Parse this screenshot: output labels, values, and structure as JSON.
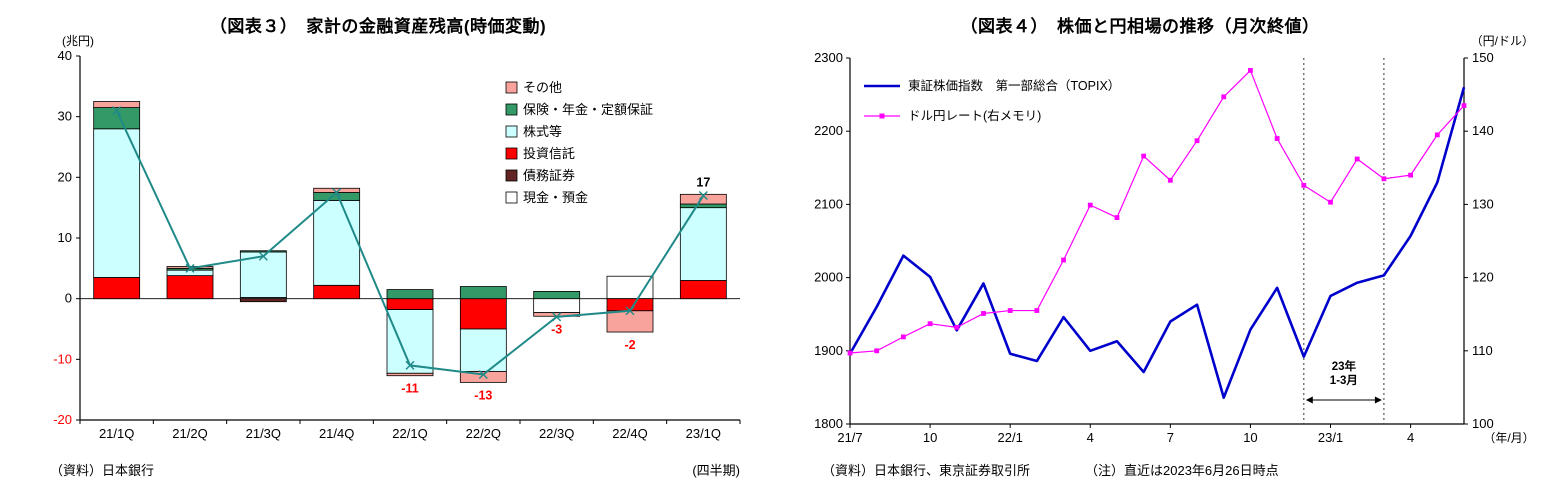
{
  "chart_data": [
    {
      "id": "fig3",
      "type": "bar",
      "title": "（図表３）　家計の金融資産残高(時価変動)",
      "unit": "(兆円)",
      "source": "（資料）日本銀行",
      "x_note": "(四半期)",
      "categories": [
        "21/1Q",
        "21/2Q",
        "21/3Q",
        "21/4Q",
        "22/1Q",
        "22/2Q",
        "22/3Q",
        "22/4Q",
        "23/1Q"
      ],
      "ylim": [
        -20,
        40
      ],
      "ytick_step": 10,
      "negative_tick_color": "#FF0000",
      "stack_series": [
        {
          "name": "現金・預金",
          "color": "#FFFFFF",
          "values": [
            0,
            0,
            0.2,
            0,
            0,
            0,
            -2.3,
            3.7,
            0
          ]
        },
        {
          "name": "債務証券",
          "color": "#632523",
          "values": [
            0,
            0,
            -0.5,
            0,
            0,
            0,
            0,
            0,
            0
          ]
        },
        {
          "name": "投資信託",
          "color": "#FF0000",
          "values": [
            3.5,
            3.8,
            0,
            2.2,
            -1.8,
            -5.0,
            0,
            -2.0,
            3.0
          ]
        },
        {
          "name": "株式等",
          "color": "#CCFFFF",
          "values": [
            24.5,
            0.9,
            7.5,
            14.0,
            -10.5,
            -7.0,
            0,
            0,
            12.0
          ]
        },
        {
          "name": "保険・年金・定額保証",
          "color": "#339966",
          "values": [
            3.5,
            0.3,
            0.2,
            1.3,
            1.5,
            2.0,
            1.2,
            0,
            0.6
          ]
        },
        {
          "name": "その他",
          "color": "#F8A39B",
          "values": [
            1.0,
            0.3,
            0,
            0.7,
            -0.4,
            -1.8,
            -0.6,
            -3.5,
            1.6
          ]
        }
      ],
      "legend_order": [
        "その他",
        "保険・年金・定額保証",
        "株式等",
        "投資信託",
        "債務証券",
        "現金・預金"
      ],
      "overlay_line": {
        "color": "#1F8A88",
        "values": [
          31,
          5,
          7,
          17.5,
          -11,
          -12.5,
          -3,
          -2,
          17
        ]
      },
      "point_labels": [
        "",
        "",
        "",
        "",
        "-11",
        "-13",
        "-3",
        "-2",
        "17"
      ],
      "positive_label_color": "#000000",
      "negative_label_color": "#FF0000"
    },
    {
      "id": "fig4",
      "type": "line",
      "title": "（図表４）　株価と円相場の推移（月次終値）",
      "right_unit": "（円/ドル）",
      "x_unit": "（年/月）",
      "source": "（資料）日本銀行、東京証券取引所",
      "note": "（注）直近は2023年6月26日時点",
      "left_ylim": [
        1800,
        2300
      ],
      "left_tick_step": 100,
      "right_ylim": [
        100,
        150
      ],
      "right_tick_step": 10,
      "x_count": 24,
      "x_ticks": [
        {
          "index": 0,
          "label": "21/7"
        },
        {
          "index": 3,
          "label": "10"
        },
        {
          "index": 6,
          "label": "22/1"
        },
        {
          "index": 9,
          "label": "4"
        },
        {
          "index": 12,
          "label": "7"
        },
        {
          "index": 15,
          "label": "10"
        },
        {
          "index": 18,
          "label": "23/1"
        },
        {
          "index": 21,
          "label": "4"
        }
      ],
      "series": [
        {
          "name": "東証株価指数　第一部総合（TOPIX）",
          "axis": "left",
          "color": "#0000CC",
          "width": 2.6,
          "values": [
            1896,
            1960,
            2030,
            2001,
            1928,
            1992,
            1896,
            1886,
            1946,
            1900,
            1913,
            1871,
            1940,
            1963,
            1836,
            1929,
            1986,
            1892,
            1975,
            1993,
            2003,
            2057,
            2130,
            2260
          ]
        },
        {
          "name": "ドル円レート(右メモリ)",
          "axis": "right",
          "color": "#FF00FF",
          "width": 1.2,
          "marker": "square",
          "values": [
            109.7,
            110.0,
            111.9,
            113.7,
            113.2,
            115.1,
            115.5,
            115.5,
            122.4,
            129.9,
            128.2,
            136.6,
            133.3,
            138.7,
            144.7,
            148.3,
            139.0,
            132.6,
            130.3,
            136.2,
            133.5,
            134.0,
            139.5,
            143.5
          ]
        }
      ],
      "annotation": {
        "line1": "23年",
        "line2": "1-3月",
        "from_index": 17,
        "to_index": 20
      }
    }
  ]
}
